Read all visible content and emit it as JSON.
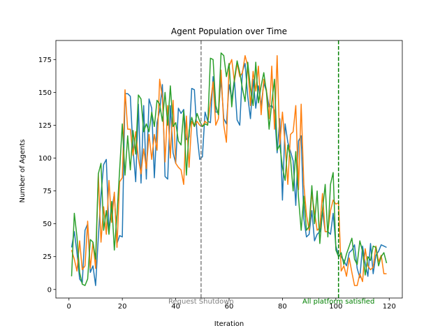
{
  "chart_data": {
    "type": "line",
    "title": "Agent Population over Time",
    "xlabel": "Iteration",
    "ylabel": "Number of Agents",
    "xlim": [
      -4.9,
      124.9
    ],
    "ylim": [
      -6.5,
      189.5
    ],
    "xticks": [
      0,
      20,
      40,
      60,
      80,
      100,
      120
    ],
    "yticks": [
      0,
      25,
      50,
      75,
      100,
      125,
      150,
      175
    ],
    "grid": false,
    "legend": "none",
    "series": [
      {
        "color": "#1f77b4",
        "x": [
          1,
          2,
          3,
          4,
          5,
          6,
          7,
          8,
          9,
          10,
          11,
          12,
          13,
          14,
          15,
          16,
          17,
          18,
          19,
          20,
          21,
          22,
          23,
          24,
          25,
          26,
          27,
          28,
          29,
          30,
          31,
          32,
          33,
          34,
          35,
          36,
          37,
          38,
          39,
          40,
          41,
          42,
          43,
          44,
          45,
          46,
          47,
          48,
          49,
          50,
          51,
          52,
          53,
          54,
          55,
          56,
          57,
          58,
          59,
          60,
          61,
          62,
          63,
          64,
          65,
          66,
          67,
          68,
          69,
          70,
          71,
          72,
          73,
          74,
          75,
          76,
          77,
          78,
          79,
          80,
          81,
          82,
          83,
          84,
          85,
          86,
          87,
          88,
          89,
          90,
          91,
          92,
          93,
          94,
          95,
          96,
          97,
          98,
          99,
          100,
          101,
          102,
          103,
          104,
          105,
          106,
          107,
          108,
          109,
          110,
          111,
          112,
          113,
          114,
          115,
          116,
          117,
          118,
          119
        ],
        "y": [
          32,
          44,
          28,
          8,
          5,
          45,
          50,
          13,
          18,
          3,
          40,
          72,
          95,
          99,
          45,
          60,
          73,
          35,
          41,
          40,
          149,
          149,
          147,
          107,
          82,
          141,
          81,
          140,
          84,
          145,
          138,
          85,
          127,
          136,
          156,
          86,
          84,
          140,
          104,
          96,
          138,
          134,
          137,
          114,
          116,
          153,
          152,
          118,
          99,
          101,
          135,
          128,
          127,
          162,
          135,
          135,
          160,
          130,
          126,
          156,
          145,
          160,
          129,
          125,
          166,
          172,
          147,
          130,
          160,
          138,
          155,
          140,
          157,
          151,
          139,
          140,
          136,
          104,
          130,
          68,
          126,
          112,
          105,
          98,
          64,
          113,
          117,
          54,
          40,
          42,
          60,
          37,
          42,
          44,
          60,
          44,
          44,
          42,
          58,
          33,
          26,
          25,
          22,
          18,
          28,
          30,
          34,
          16,
          9,
          33,
          20,
          10,
          35,
          12,
          26,
          29,
          34,
          33,
          32
        ]
      },
      {
        "color": "#ff7f0e",
        "x": [
          1,
          2,
          3,
          4,
          5,
          6,
          7,
          8,
          9,
          10,
          11,
          12,
          13,
          14,
          15,
          16,
          17,
          18,
          19,
          20,
          21,
          22,
          23,
          24,
          25,
          26,
          27,
          28,
          29,
          30,
          31,
          32,
          33,
          34,
          35,
          36,
          37,
          38,
          39,
          40,
          41,
          42,
          43,
          44,
          45,
          46,
          47,
          48,
          49,
          50,
          51,
          52,
          53,
          54,
          55,
          56,
          57,
          58,
          59,
          60,
          61,
          62,
          63,
          64,
          65,
          66,
          67,
          68,
          69,
          70,
          71,
          72,
          73,
          74,
          75,
          76,
          77,
          78,
          79,
          80,
          81,
          82,
          83,
          84,
          85,
          86,
          87,
          88,
          89,
          90,
          91,
          92,
          93,
          94,
          95,
          96,
          97,
          98,
          99,
          100,
          101,
          102,
          103,
          104,
          105,
          106,
          107,
          108,
          109,
          110,
          111,
          112,
          113,
          114,
          115,
          116,
          117,
          118,
          119
        ],
        "y": [
          30,
          23,
          14,
          37,
          15,
          18,
          52,
          16,
          36,
          16,
          88,
          36,
          63,
          42,
          83,
          51,
          74,
          32,
          82,
          85,
          152,
          122,
          122,
          102,
          120,
          100,
          88,
          107,
          92,
          118,
          99,
          118,
          106,
          160,
          146,
          97,
          140,
          100,
          144,
          96,
          93,
          91,
          80,
          132,
          93,
          128,
          124,
          128,
          125,
          124,
          128,
          126,
          142,
          158,
          125,
          130,
          167,
          125,
          112,
          170,
          175,
          158,
          172,
          162,
          165,
          178,
          170,
          140,
          166,
          151,
          170,
          133,
          160,
          152,
          130,
          170,
          122,
          178,
          110,
          135,
          110,
          80,
          118,
          120,
          140,
          76,
          141,
          80,
          57,
          45,
          73,
          59,
          45,
          47,
          73,
          44,
          44,
          60,
          68,
          65,
          66,
          14,
          18,
          10,
          24,
          13,
          3,
          3,
          12,
          6,
          31,
          18,
          15,
          17,
          33,
          21,
          26,
          12,
          12
        ]
      },
      {
        "color": "#2ca02c",
        "x": [
          1,
          2,
          3,
          4,
          5,
          6,
          7,
          8,
          9,
          10,
          11,
          12,
          13,
          14,
          15,
          16,
          17,
          18,
          19,
          20,
          21,
          22,
          23,
          24,
          25,
          26,
          27,
          28,
          29,
          30,
          31,
          32,
          33,
          34,
          35,
          36,
          37,
          38,
          39,
          40,
          41,
          42,
          43,
          44,
          45,
          46,
          47,
          48,
          49,
          50,
          51,
          52,
          53,
          54,
          55,
          56,
          57,
          58,
          59,
          60,
          61,
          62,
          63,
          64,
          65,
          66,
          67,
          68,
          69,
          70,
          71,
          72,
          73,
          74,
          75,
          76,
          77,
          78,
          79,
          80,
          81,
          82,
          83,
          84,
          85,
          86,
          87,
          88,
          89,
          90,
          91,
          92,
          93,
          94,
          95,
          96,
          97,
          98,
          99,
          100,
          101,
          102,
          103,
          104,
          105,
          106,
          107,
          108,
          109,
          110,
          111,
          112,
          113,
          114,
          115,
          116,
          117,
          118,
          119
        ],
        "y": [
          10,
          58,
          40,
          13,
          4,
          3,
          8,
          38,
          36,
          23,
          88,
          96,
          45,
          60,
          42,
          67,
          30,
          57,
          91,
          126,
          87,
          117,
          91,
          121,
          103,
          148,
          145,
          120,
          126,
          120,
          135,
          124,
          144,
          141,
          128,
          150,
          125,
          155,
          124,
          127,
          113,
          110,
          136,
          87,
          121,
          131,
          124,
          134,
          128,
          124,
          126,
          125,
          176,
          175,
          140,
          133,
          180,
          178,
          162,
          172,
          139,
          160,
          174,
          165,
          153,
          143,
          173,
          153,
          140,
          173,
          142,
          155,
          165,
          150,
          122,
          142,
          160,
          106,
          110,
          93,
          83,
          110,
          100,
          75,
          105,
          70,
          45,
          71,
          45,
          48,
          79,
          50,
          75,
          35,
          60,
          80,
          40,
          80,
          89,
          30,
          25,
          28,
          19,
          27,
          33,
          39,
          23,
          19,
          37,
          29,
          11,
          25,
          22,
          33,
          32,
          18,
          25,
          28,
          20
        ]
      }
    ],
    "vlines": [
      {
        "x": 49.5,
        "color": "#808080",
        "label": "Request Shutdown"
      },
      {
        "x": 101,
        "color": "#008000",
        "label": "All platform satisfied"
      }
    ]
  }
}
